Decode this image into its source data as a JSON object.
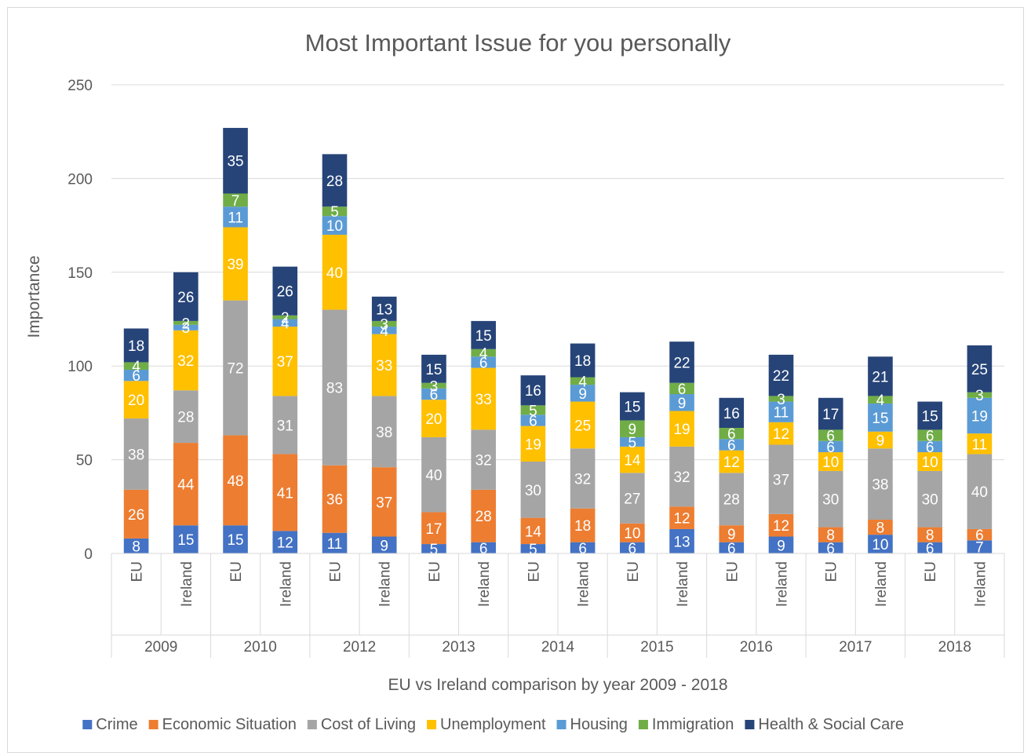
{
  "chart_data": {
    "type": "bar",
    "stacked": true,
    "title": "Most Important Issue for you personally",
    "xlabel": "EU vs Ireland comparison by year 2009 - 2018",
    "ylabel": "Importance",
    "ylim": [
      0,
      250
    ],
    "yticks": [
      0,
      50,
      100,
      150,
      200,
      250
    ],
    "grid": true,
    "legend_position": "bottom",
    "groups": [
      "2009",
      "2010",
      "2012",
      "2013",
      "2014",
      "2015",
      "2016",
      "2017",
      "2018"
    ],
    "subcategories": [
      "EU",
      "Ireland"
    ],
    "series": [
      {
        "name": "Crime",
        "color": "#4472c4",
        "values": [
          8,
          15,
          15,
          12,
          11,
          9,
          5,
          6,
          5,
          6,
          6,
          13,
          6,
          9,
          6,
          10,
          6,
          7
        ]
      },
      {
        "name": "Economic Situation",
        "color": "#ed7d31",
        "values": [
          26,
          44,
          48,
          41,
          36,
          37,
          17,
          28,
          14,
          18,
          10,
          12,
          9,
          12,
          8,
          8,
          8,
          6
        ]
      },
      {
        "name": "Cost of Living",
        "color": "#a5a5a5",
        "values": [
          38,
          28,
          72,
          31,
          83,
          38,
          40,
          32,
          30,
          32,
          27,
          32,
          28,
          37,
          30,
          38,
          30,
          40
        ]
      },
      {
        "name": "Unemployment",
        "color": "#ffc000",
        "values": [
          20,
          32,
          39,
          37,
          40,
          33,
          20,
          33,
          19,
          25,
          14,
          19,
          12,
          12,
          10,
          9,
          10,
          11
        ]
      },
      {
        "name": "Housing",
        "color": "#5b9bd5",
        "values": [
          6,
          3,
          11,
          4,
          10,
          4,
          6,
          6,
          6,
          9,
          5,
          9,
          6,
          11,
          6,
          15,
          6,
          19
        ]
      },
      {
        "name": "Immigration",
        "color": "#70ad47",
        "values": [
          4,
          2,
          7,
          2,
          5,
          3,
          3,
          4,
          5,
          4,
          9,
          6,
          6,
          3,
          6,
          4,
          6,
          3
        ]
      },
      {
        "name": "Health & Social Care",
        "color": "#264478",
        "values": [
          18,
          26,
          35,
          26,
          28,
          13,
          15,
          15,
          16,
          18,
          15,
          22,
          16,
          22,
          17,
          21,
          15,
          25
        ]
      }
    ]
  }
}
